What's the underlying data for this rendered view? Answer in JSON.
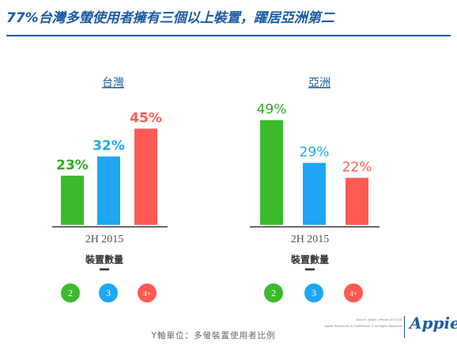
{
  "title": "77%台灣多螢使用者擁有三個以上裝置，躍居亞洲第二",
  "footer": "Y軸單位：多螢裝置使用者比例",
  "source_line_1": "Source: Appier | Period: 2H 2015",
  "source_line_2": "Appier Proprietary & Confidential © All Rights Reserved",
  "brand": "Appier",
  "chart_data": [
    {
      "type": "bar",
      "title": "台灣",
      "xlabel": "2H 2015",
      "group_label": "裝置數量",
      "categories": [
        "2",
        "3",
        "4+"
      ],
      "values": [
        23,
        32,
        45
      ],
      "value_labels": [
        "23%",
        "32%",
        "45%"
      ],
      "colors": [
        "#3bbb2c",
        "#1ea7f5",
        "#fe5a53"
      ],
      "label_colors": [
        "#2fae23",
        "#1ea7f5",
        "#fe5a53"
      ],
      "ylim": [
        0,
        50
      ]
    },
    {
      "type": "bar",
      "title": "亞洲",
      "xlabel": "2H 2015",
      "group_label": "裝置數量",
      "categories": [
        "2",
        "3",
        "4+"
      ],
      "values": [
        49,
        29,
        22
      ],
      "value_labels": [
        "49%",
        "29%",
        "22%"
      ],
      "colors": [
        "#3bbb2c",
        "#1ea7f5",
        "#fe5a53"
      ],
      "label_colors": [
        "#2fae23",
        "#1ea7f5",
        "#fe5a53"
      ],
      "ylim": [
        0,
        50
      ]
    }
  ]
}
